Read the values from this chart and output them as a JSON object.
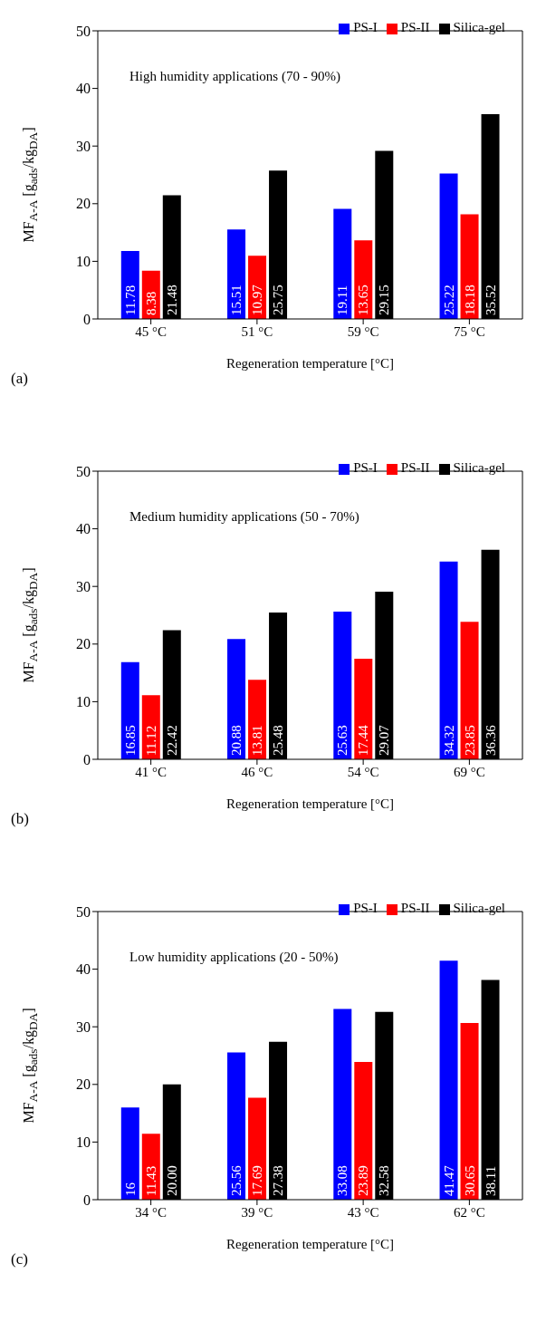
{
  "chart_data": [
    {
      "type": "bar",
      "categories": [
        "45 °C",
        "51 °C",
        "59 °C",
        "75 °C"
      ],
      "xlabel": "Regeneration temperature [°C]",
      "ylabel": "MF$_{A-A}$ [g$_{ads}$/kg$_{DA}$]",
      "ylim": [
        0,
        50
      ],
      "yticks": [
        0,
        10,
        20,
        30,
        40,
        50
      ],
      "grid": false,
      "legend": "top right",
      "annotations": [
        "High humidity applications (70 - 90%)",
        "(a)"
      ],
      "series": [
        {
          "name": "PS-I",
          "color": "#0000ff",
          "values": [
            11.78,
            15.51,
            19.11,
            25.22
          ],
          "value_labels": [
            "11.78",
            "15.51",
            "19.11",
            "25.22"
          ]
        },
        {
          "name": "PS-II",
          "color": "#ff0000",
          "values": [
            8.38,
            10.97,
            13.65,
            18.18
          ],
          "value_labels": [
            "8.38",
            "10.97",
            "13.65",
            "18.18"
          ]
        },
        {
          "name": "Silica-gel",
          "color": "#000000",
          "values": [
            21.48,
            25.75,
            29.15,
            35.52
          ],
          "value_labels": [
            "21.48",
            "25.75",
            "29.15",
            "35.52"
          ]
        }
      ]
    },
    {
      "type": "bar",
      "categories": [
        "41 °C",
        "46 °C",
        "54 °C",
        "69 °C"
      ],
      "xlabel": "Regeneration temperature [°C]",
      "ylabel": "MF$_{A-A}$ [g$_{ads}$/kg$_{DA}$]",
      "ylim": [
        0,
        50
      ],
      "yticks": [
        0,
        10,
        20,
        30,
        40,
        50
      ],
      "grid": false,
      "legend": "top right",
      "annotations": [
        "Medium humidity applications (50 - 70%)",
        "(b)"
      ],
      "series": [
        {
          "name": "PS-I",
          "color": "#0000ff",
          "values": [
            16.85,
            20.88,
            25.63,
            34.32
          ],
          "value_labels": [
            "16.85",
            "20.88",
            "25.63",
            "34.32"
          ]
        },
        {
          "name": "PS-II",
          "color": "#ff0000",
          "values": [
            11.12,
            13.81,
            17.44,
            23.85
          ],
          "value_labels": [
            "11.12",
            "13.81",
            "17.44",
            "23.85"
          ]
        },
        {
          "name": "Silica-gel",
          "color": "#000000",
          "values": [
            22.42,
            25.48,
            29.07,
            36.36
          ],
          "value_labels": [
            "22.42",
            "25.48",
            "29.07",
            "36.36"
          ]
        }
      ]
    },
    {
      "type": "bar",
      "categories": [
        "34 °C",
        "39 °C",
        "43 °C",
        "62 °C"
      ],
      "xlabel": "Regeneration temperature [°C]",
      "ylabel": "MF$_{A-A}$ [g$_{ads}$/kg$_{DA}$]",
      "ylim": [
        0,
        50
      ],
      "yticks": [
        0,
        10,
        20,
        30,
        40,
        50
      ],
      "grid": false,
      "legend": "top right",
      "annotations": [
        "Low humidity applications (20 - 50%)",
        "(c)"
      ],
      "series": [
        {
          "name": "PS-I",
          "color": "#0000ff",
          "values": [
            16,
            25.56,
            33.08,
            41.47
          ],
          "value_labels": [
            "16",
            "25.56",
            "33.08",
            "41.47"
          ]
        },
        {
          "name": "PS-II",
          "color": "#ff0000",
          "values": [
            11.43,
            17.69,
            23.89,
            30.65
          ],
          "value_labels": [
            "11.43",
            "17.69",
            "23.89",
            "30.65"
          ]
        },
        {
          "name": "Silica-gel",
          "color": "#000000",
          "values": [
            20.0,
            27.38,
            32.58,
            38.11
          ],
          "value_labels": [
            "20.00",
            "27.38",
            "32.58",
            "38.11"
          ]
        }
      ]
    }
  ]
}
